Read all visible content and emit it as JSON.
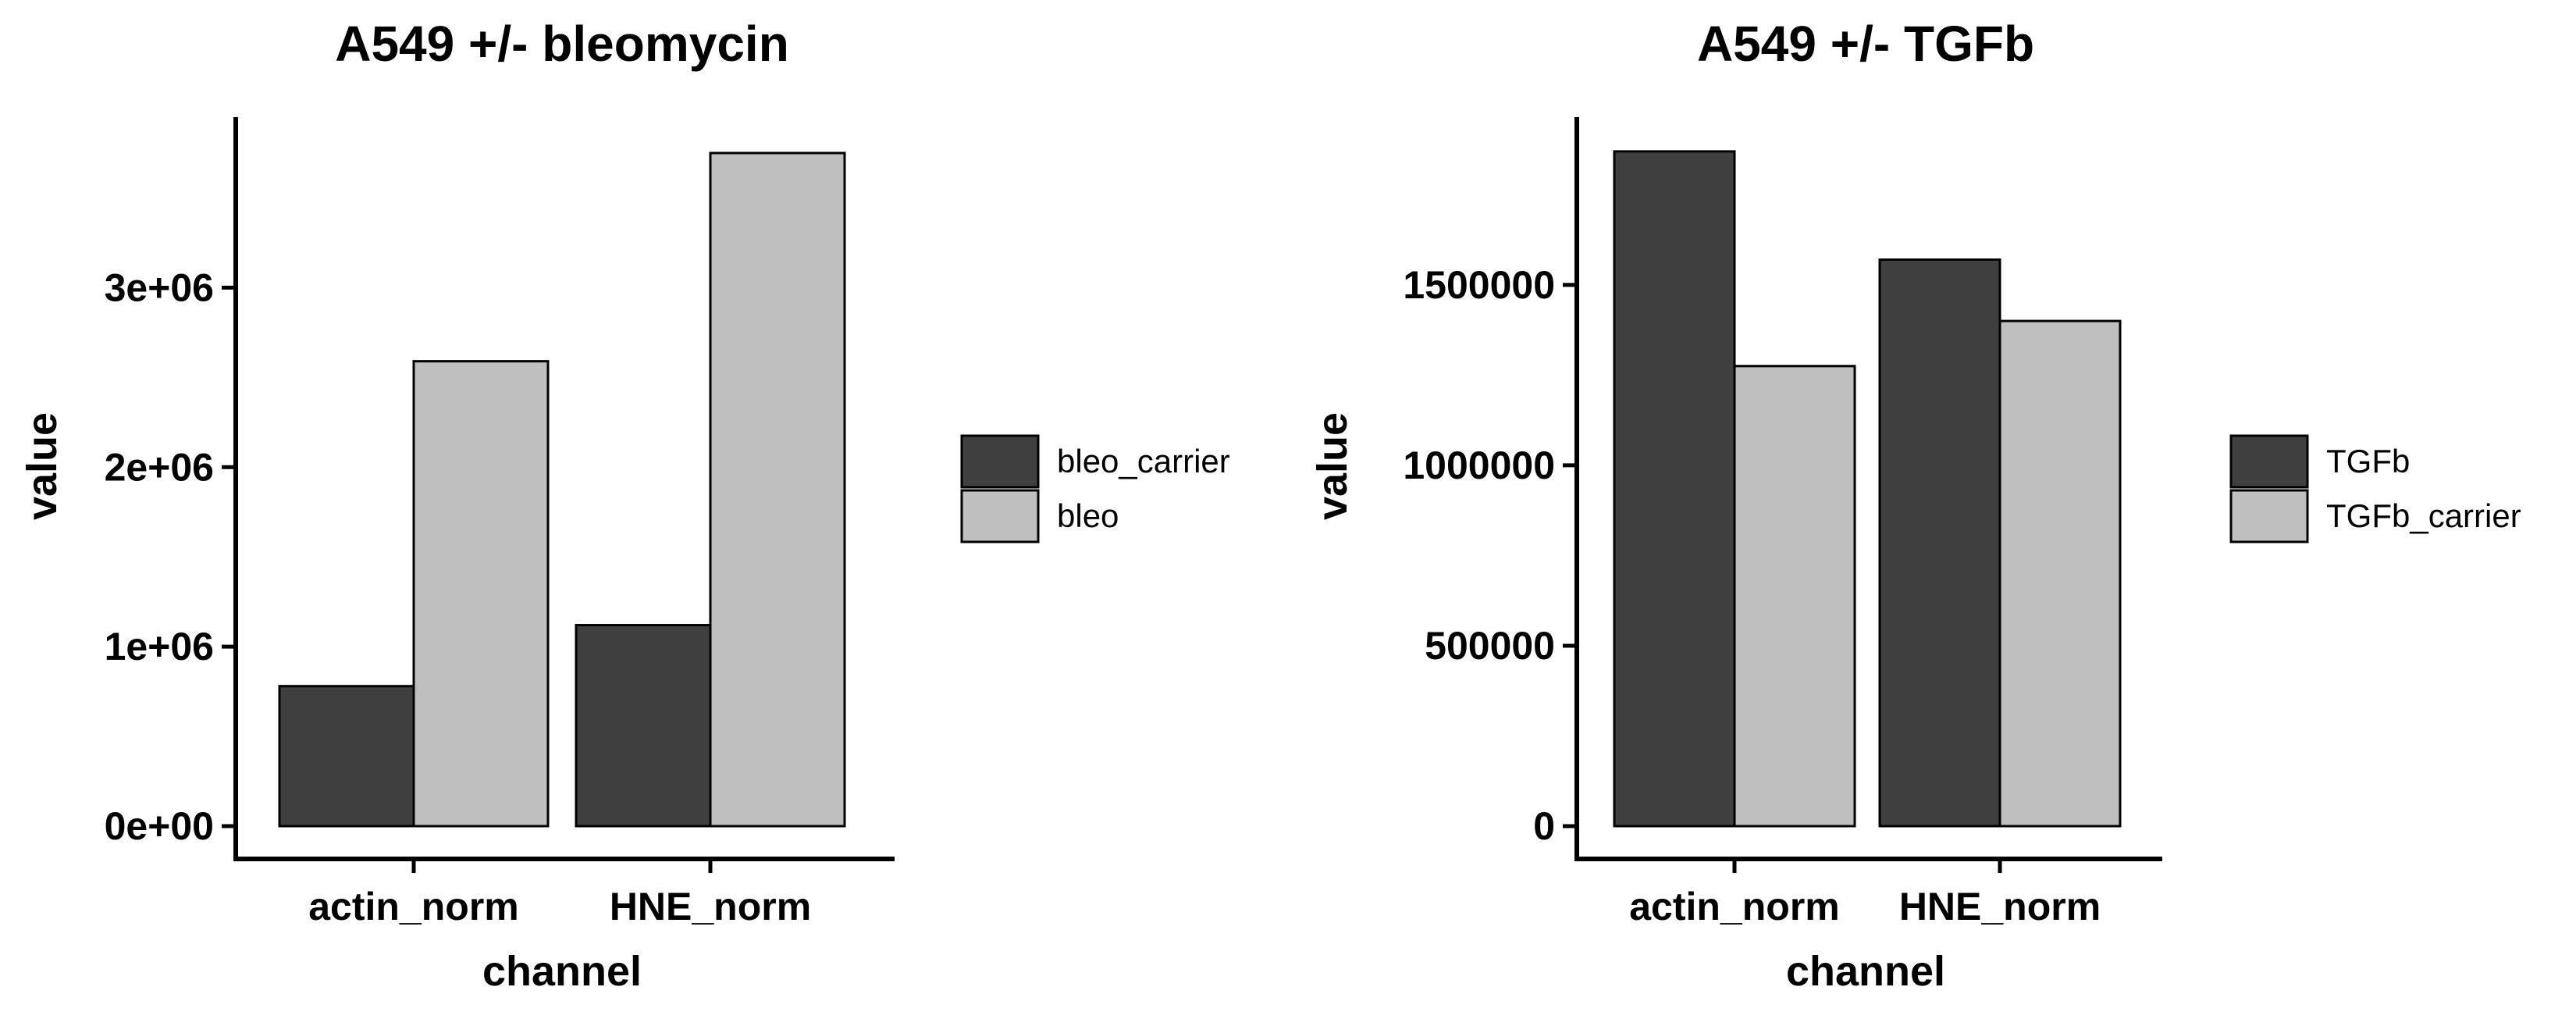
{
  "chart_data": [
    {
      "type": "bar",
      "title": "A549 +/- bleomycin",
      "xlabel": "channel",
      "ylabel": "value",
      "categories": [
        "actin_norm",
        "HNE_norm"
      ],
      "series": [
        {
          "name": "bleo_carrier",
          "color": "#404040",
          "values": [
            780000,
            1120000
          ]
        },
        {
          "name": "bleo",
          "color": "#bfbfbf",
          "values": [
            2590000,
            3750000
          ]
        }
      ],
      "yticks": [
        0,
        1000000,
        2000000,
        3000000
      ],
      "ytick_labels": [
        "0e+00",
        "1e+06",
        "2e+06",
        "3e+06"
      ],
      "ylim": [
        0,
        3950000
      ],
      "grid": false,
      "legend": "right"
    },
    {
      "type": "bar",
      "title": "A549 +/- TGFb",
      "xlabel": "channel",
      "ylabel": "value",
      "categories": [
        "actin_norm",
        "HNE_norm"
      ],
      "series": [
        {
          "name": "TGFb",
          "color": "#404040",
          "values": [
            1870000,
            1570000
          ]
        },
        {
          "name": "TGFb_carrier",
          "color": "#bfbfbf",
          "values": [
            1275000,
            1400000
          ]
        }
      ],
      "yticks": [
        0,
        500000,
        1000000,
        1500000
      ],
      "ytick_labels": [
        "0",
        "500000",
        "1000000",
        "1500000"
      ],
      "ylim": [
        0,
        1965000
      ],
      "grid": false,
      "legend": "right"
    }
  ]
}
